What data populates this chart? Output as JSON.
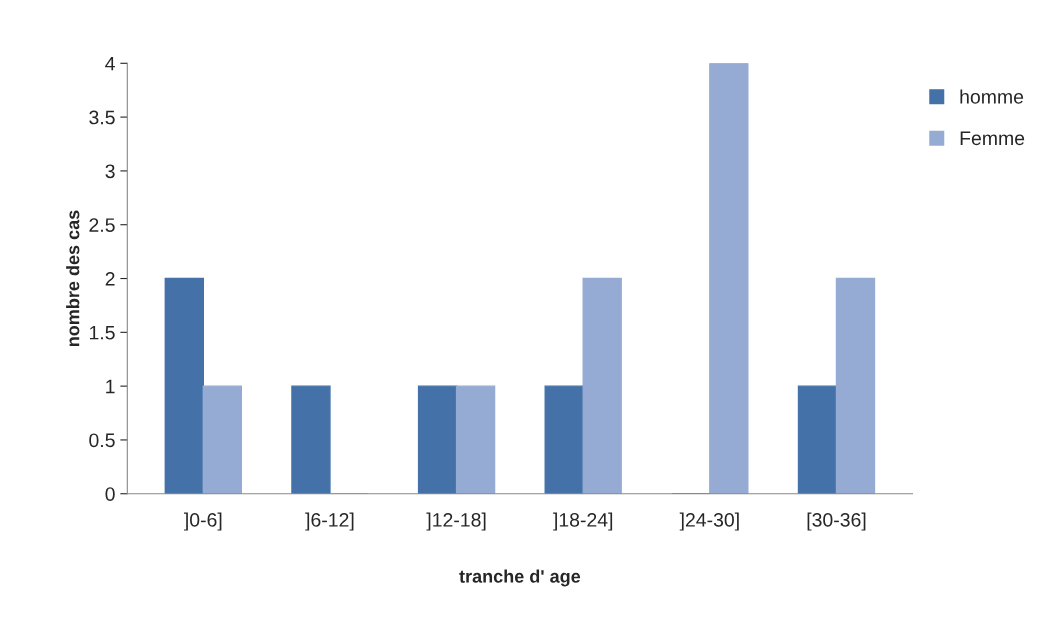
{
  "chart_data": {
    "type": "bar",
    "xlabel": "tranche d' age",
    "ylabel": "nombre des cas",
    "categories": [
      "]0-6]",
      "]6-12]",
      "]12-18]",
      "]18-24]",
      "]24-30]",
      "[30-36]"
    ],
    "series": [
      {
        "name": "homme",
        "color": "#4472a8",
        "values": [
          2,
          1,
          1,
          1,
          0,
          1
        ]
      },
      {
        "name": "Femme",
        "color": "#95abd3",
        "values": [
          1,
          0,
          1,
          2,
          4,
          2
        ]
      }
    ],
    "ylim": [
      0,
      4
    ],
    "yticks": [
      0,
      0.5,
      1,
      1.5,
      2,
      2.5,
      3,
      3.5,
      4
    ],
    "grid": false,
    "legend": "top right"
  }
}
